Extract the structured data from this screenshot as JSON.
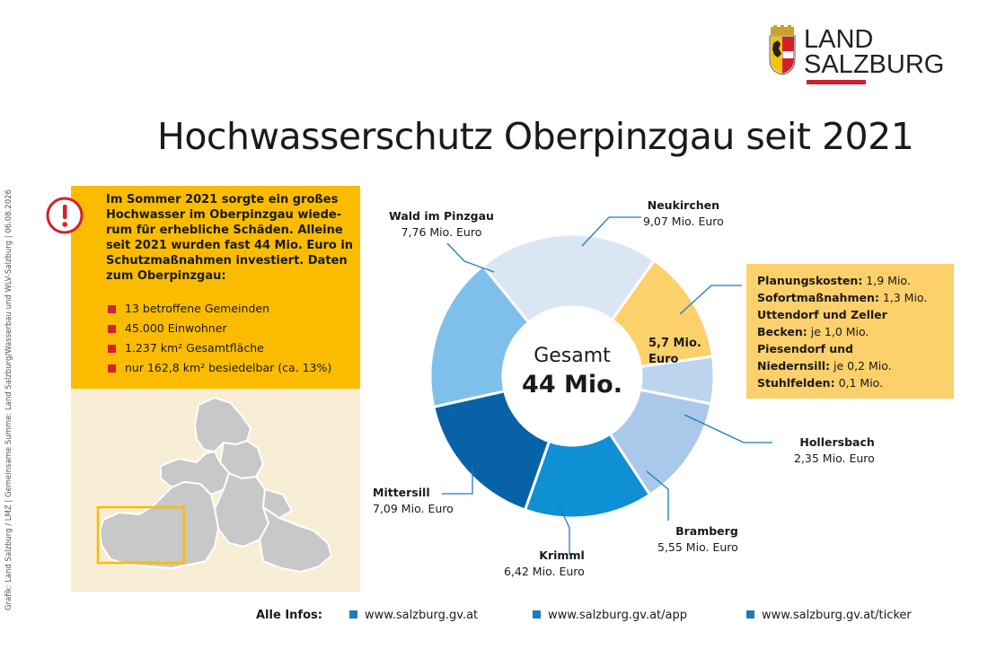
{
  "logo": {
    "line1": "LAND",
    "line2": "SALZBURG"
  },
  "title": "Hochwasserschutz Oberpinzgau seit 2021",
  "credit": "Grafik: Land Salzburg / LMZ | Gemeinsame Summe: Land Salzburg/Wasserbau und WLV-Salzburg | 06.08.2026",
  "intro_text": "Im Sommer 2021 sorgte ein großes Hochwasser im Oberpinzgau wiede-rum für erhebliche Schäden. Alleine seit 2021 wurden fast 44 Mio. Euro in Schutzmaßnahmen investiert. Daten zum Oberpinzgau:",
  "facts": [
    "13 betroffene Gemeinden",
    "45.000 Einwohner",
    "1.237 km² Gesamtfläche",
    "nur 162,8 km² besiedelbar (ca. 13%)"
  ],
  "colors": {
    "accent": "#fbbc00",
    "red": "#d4202b",
    "blue": "#1a7bbf"
  },
  "chart_data": {
    "type": "pie",
    "center": {
      "line1": "Gesamt",
      "line2": "44 Mio."
    },
    "categories": [
      "Neukirchen",
      "Planungskosten etc.",
      "Hollersbach",
      "Bramberg",
      "Krimml",
      "Mittersill",
      "Wald im Pinzgau"
    ],
    "labels": [
      {
        "name": "Neukirchen",
        "value": "9,07 Mio. Euro"
      },
      {
        "name": "",
        "value": "5,7 Mio. Euro"
      },
      {
        "name": "Hollersbach",
        "value": "2,35 Mio. Euro"
      },
      {
        "name": "Bramberg",
        "value": "5,55 Mio. Euro"
      },
      {
        "name": "Krimml",
        "value": "6,42 Mio. Euro"
      },
      {
        "name": "Mittersill",
        "value": "7,09 Mio. Euro"
      },
      {
        "name": "Wald im Pinzgau",
        "value": "7,76 Mio. Euro"
      }
    ],
    "values": [
      9.07,
      5.7,
      2.35,
      5.55,
      6.42,
      7.09,
      7.76
    ],
    "colors": [
      "#dbe6f5",
      "#fcd06a",
      "#bcd4ee",
      "#a9c8ea",
      "#0f8fd4",
      "#0862a8",
      "#7fc0ea"
    ],
    "inner_label": {
      "line1": "5,7 Mio.",
      "line2": "Euro"
    }
  },
  "planning": [
    {
      "bold": "Planungskosten:",
      "light": " 1,9 Mio."
    },
    {
      "bold": "Sofortmaßnahmen:",
      "light": " 1,3 Mio."
    },
    {
      "bold": "Uttendorf und Zeller",
      "light": ""
    },
    {
      "bold": "Becken:",
      "light": " je 1,0 Mio."
    },
    {
      "bold": "Piesendorf und",
      "light": ""
    },
    {
      "bold": "Niedernsill:",
      "light": " je 0,2 Mio."
    },
    {
      "bold": "Stuhlfelden:",
      "light": " 0,1 Mio."
    }
  ],
  "footer": {
    "label": "Alle Infos:",
    "links": [
      "www.salzburg.gv.at",
      "www.salzburg.gv.at/app",
      "www.salzburg.gv.at/ticker"
    ]
  }
}
